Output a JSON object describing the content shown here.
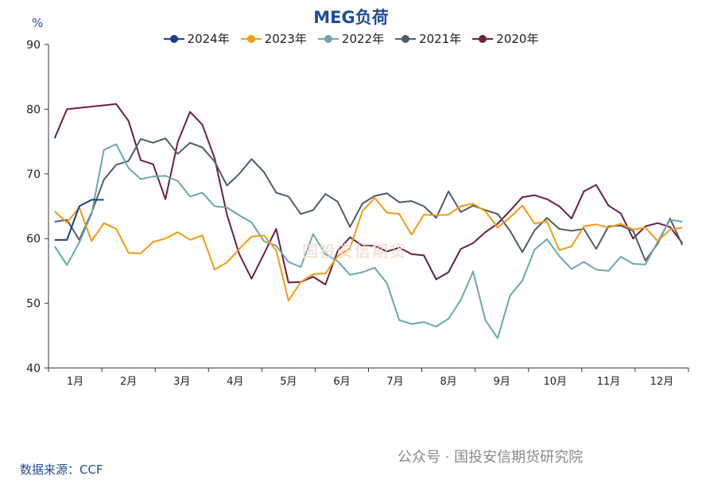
{
  "title": "MEG负荷",
  "unit_label": "%",
  "source": "数据来源：CCF",
  "watermark_text": "公众号 · 国投安信期货研究院",
  "center_watermark_text": "国投安信期货",
  "chart_data": {
    "type": "line",
    "ylim": [
      40,
      90
    ],
    "yticks": [
      40,
      50,
      60,
      70,
      80,
      90
    ],
    "xlim": [
      0,
      52
    ],
    "month_ticks": [
      "1月",
      "2月",
      "3月",
      "4月",
      "5月",
      "6月",
      "7月",
      "8月",
      "9月",
      "10月",
      "11月",
      "12月"
    ],
    "legend_position": "top-center",
    "grid": false,
    "series": [
      {
        "name": "2024年",
        "color": "#1a3f8f",
        "values": [
          59.8,
          59.8,
          65.0,
          66.0,
          66.0
        ]
      },
      {
        "name": "2023年",
        "color": "#f29b13",
        "values": [
          64.2,
          62.5,
          64.8,
          59.6,
          62.4,
          61.5,
          57.8,
          57.7,
          59.5,
          60.0,
          61.0,
          59.8,
          60.5,
          55.2,
          56.3,
          58.4,
          60.3,
          60.5,
          58.2,
          50.4,
          53.3,
          54.5,
          54.6,
          57.3,
          58.5,
          64.2,
          66.3,
          64.0,
          63.8,
          60.6,
          63.7,
          63.6,
          63.7,
          65.0,
          65.4,
          64.2,
          61.7,
          63.3,
          65.1,
          62.3,
          62.7,
          58.2,
          58.8,
          61.9,
          62.2,
          61.7,
          62.3,
          61.4,
          61.7,
          59.6,
          61.4,
          61.7
        ]
      },
      {
        "name": "2022年",
        "color": "#6ba8ad",
        "values": [
          58.8,
          55.9,
          59.4,
          63.8,
          73.7,
          74.6,
          70.9,
          69.2,
          69.6,
          69.7,
          68.9,
          66.5,
          67.1,
          65.0,
          64.8,
          63.6,
          62.5,
          59.6,
          58.9,
          56.4,
          55.6,
          60.7,
          57.6,
          56.5,
          54.4,
          54.8,
          55.5,
          53.1,
          47.4,
          46.8,
          47.1,
          46.4,
          47.6,
          50.5,
          54.9,
          47.4,
          44.6,
          51.2,
          53.5,
          58.3,
          59.9,
          57.3,
          55.3,
          56.4,
          55.2,
          55.0,
          57.2,
          56.1,
          56.0,
          59.5,
          62.9,
          62.6
        ]
      },
      {
        "name": "2021年",
        "color": "#4e5d6c",
        "values": [
          62.6,
          62.9,
          59.8,
          64.0,
          69.1,
          71.4,
          72.0,
          75.4,
          74.8,
          75.5,
          73.1,
          74.8,
          74.1,
          71.9,
          68.2,
          70.0,
          72.3,
          70.3,
          67.1,
          66.5,
          63.8,
          64.4,
          66.9,
          65.7,
          61.8,
          65.4,
          66.6,
          67.0,
          65.6,
          65.8,
          65.0,
          63.2,
          67.3,
          64.1,
          65.1,
          64.4,
          63.8,
          61.2,
          57.9,
          61.3,
          63.2,
          61.5,
          61.2,
          61.5,
          58.4,
          61.9,
          62.0,
          61.2,
          56.6,
          59.2,
          63.1,
          59.0
        ]
      },
      {
        "name": "2020年",
        "color": "#6b1f47",
        "values": [
          75.5,
          80.0,
          80.2,
          80.4,
          80.6,
          80.8,
          78.2,
          72.1,
          71.5,
          66.1,
          74.9,
          79.6,
          77.6,
          72.4,
          63.7,
          57.6,
          53.8,
          57.6,
          61.5,
          53.2,
          53.3,
          54.1,
          52.9,
          58.1,
          60.2,
          58.9,
          58.9,
          58.0,
          58.6,
          57.6,
          57.4,
          53.7,
          54.8,
          58.4,
          59.3,
          61.0,
          62.3,
          64.3,
          66.4,
          66.7,
          66.1,
          65.0,
          63.1,
          67.3,
          68.3,
          65.1,
          63.9,
          60.0,
          61.9,
          62.4,
          61.8,
          59.3
        ]
      }
    ]
  }
}
